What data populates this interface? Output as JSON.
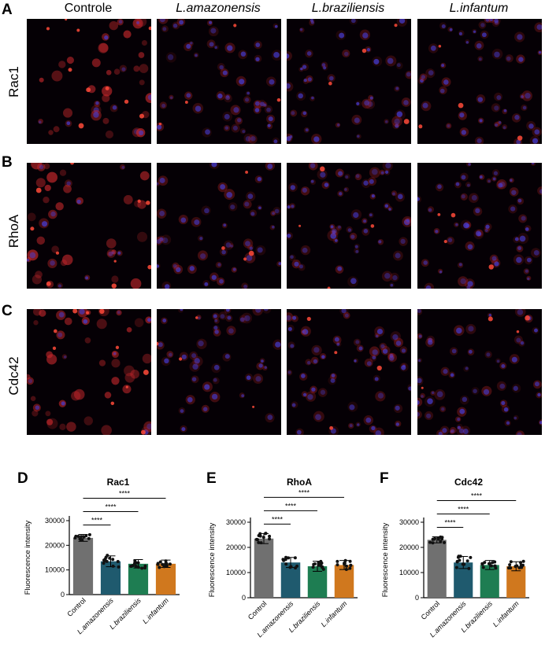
{
  "panel_labels": {
    "A": "A",
    "B": "B",
    "C": "C",
    "D": "D",
    "E": "E",
    "F": "F"
  },
  "columns": [
    "Controle",
    "L.amazonensis",
    "L.braziliensis",
    "L.infantum"
  ],
  "rows": [
    "Rac1",
    "RhoA",
    "Cdc42"
  ],
  "colors": {
    "control": "#707070",
    "amazonensis": "#1f5a6e",
    "braziliensis": "#1e7d52",
    "infantum": "#d0781e",
    "red_signal": "#d2282a",
    "blue_nuclei": "#3a3adc"
  },
  "chart_data": [
    {
      "type": "bar",
      "title": "Rac1",
      "ylabel": "Fluorescence intensity",
      "categories": [
        "Control",
        "L.amazonensis",
        "L.braziliensis",
        "L.infantum"
      ],
      "values": [
        23000,
        13500,
        12500,
        12500
      ],
      "errors": [
        1400,
        2200,
        1700,
        1500
      ],
      "ylim": [
        0,
        30000
      ],
      "yticks": [
        0,
        10000,
        20000,
        30000
      ],
      "significance": [
        "****",
        "****",
        "****"
      ]
    },
    {
      "type": "bar",
      "title": "RhoA",
      "ylabel": "Fluorescence intensity",
      "categories": [
        "Control",
        "L.amazonensis",
        "L.braziliensis",
        "L.infantum"
      ],
      "values": [
        23500,
        14000,
        12500,
        13000
      ],
      "errors": [
        2000,
        2000,
        2000,
        1800
      ],
      "ylim": [
        0,
        30000
      ],
      "yticks": [
        0,
        10000,
        20000,
        30000
      ],
      "significance": [
        "****",
        "****",
        "****"
      ]
    },
    {
      "type": "bar",
      "title": "Cdc42",
      "ylabel": "Fluorescence intensity",
      "categories": [
        "Control",
        "L.amazonensis",
        "L.braziliensis",
        "L.infantum"
      ],
      "values": [
        23000,
        14000,
        13000,
        12500
      ],
      "errors": [
        1200,
        2400,
        1800,
        1800
      ],
      "ylim": [
        0,
        30000
      ],
      "yticks": [
        0,
        10000,
        20000,
        30000
      ],
      "significance": [
        "****",
        "****",
        "****"
      ]
    }
  ]
}
